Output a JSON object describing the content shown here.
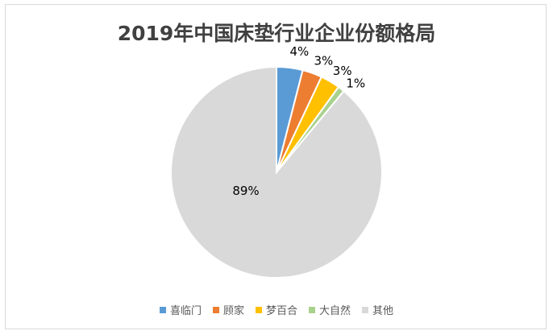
{
  "chart_data": {
    "type": "pie",
    "title": "2019年中国床垫行业企业份额格局",
    "legend_position": "bottom",
    "slices": [
      {
        "name": "喜临门",
        "value": 4,
        "label": "4%",
        "color": "#5b9bd5"
      },
      {
        "name": "顾家",
        "value": 3,
        "label": "3%",
        "color": "#ed7d31"
      },
      {
        "name": "梦百合",
        "value": 3,
        "label": "3%",
        "color": "#ffc000"
      },
      {
        "name": "大自然",
        "value": 1,
        "label": "1%",
        "color": "#a9d18e"
      },
      {
        "name": "其他",
        "value": 89,
        "label": "89%",
        "color": "#d9d9d9"
      }
    ]
  }
}
